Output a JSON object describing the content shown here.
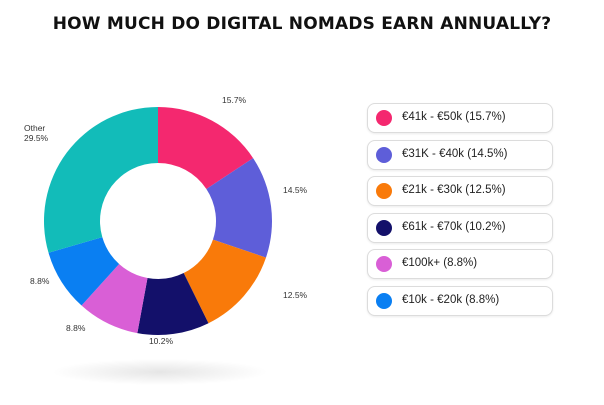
{
  "title": "HOW MUCH DO DIGITAL NOMADS EARN ANNUALLY?",
  "chart_data": {
    "type": "pie",
    "title": "HOW MUCH DO DIGITAL NOMADS EARN ANNUALLY?",
    "donut": true,
    "start": "top, clockwise",
    "slices": [
      {
        "key": "41-50",
        "value": 15.7,
        "color": "#f4286f",
        "label": "15.7%",
        "legend": "€41k - €50k (15.7%)"
      },
      {
        "key": "31-40",
        "value": 14.5,
        "color": "#5e5ed9",
        "label": "14.5%",
        "legend": "€31K - €40k (14.5%)"
      },
      {
        "key": "21-30",
        "value": 12.5,
        "color": "#f97a0a",
        "label": "12.5%",
        "legend": "€21k - €30k (12.5%)"
      },
      {
        "key": "61-70",
        "value": 10.2,
        "color": "#13106a",
        "label": "10.2%",
        "legend": "€61k - €70k (10.2%)"
      },
      {
        "key": "100plus",
        "value": 8.8,
        "color": "#d95fd6",
        "label": "8.8%",
        "legend": "€100k+ (8.8%)"
      },
      {
        "key": "10-20",
        "value": 8.8,
        "color": "#0a7ff2",
        "label": "8.8%",
        "legend": "€10k - €20k (8.8%)"
      },
      {
        "key": "other",
        "value": 29.5,
        "color": "#12bcb9",
        "label": "Other\n29.5%",
        "legend": null
      }
    ],
    "legend_position": "right"
  }
}
